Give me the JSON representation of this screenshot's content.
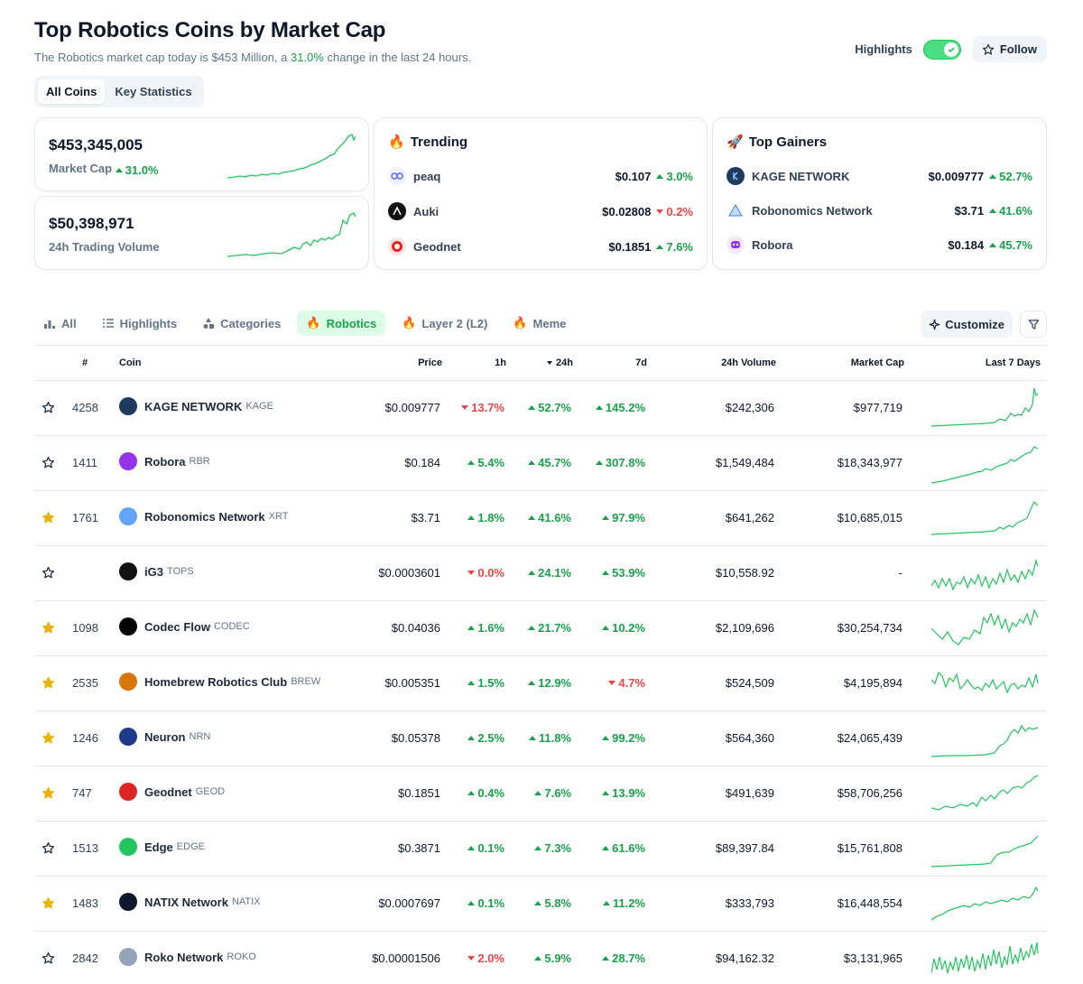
{
  "header": {
    "title": "Top Robotics Coins by Market Cap",
    "subtitle_pre": "The Robotics market cap today is $453 Million, a",
    "subtitle_pct": "31.0%",
    "subtitle_post": "change in the last 24 hours.",
    "highlights_label": "Highlights",
    "highlights_on": true,
    "follow_label": "Follow"
  },
  "view_tabs": [
    "All Coins",
    "Key Statistics"
  ],
  "stats": {
    "market_cap_value": "$453,345,005",
    "market_cap_label": "Market Cap",
    "market_cap_change": "31.0%",
    "volume_value": "$50,398,971",
    "volume_label": "24h Trading Volume"
  },
  "trending": {
    "title": "Trending",
    "items": [
      {
        "name": "peaq",
        "price": "$0.107",
        "change": "3.0%",
        "dir": "up"
      },
      {
        "name": "Auki",
        "price": "$0.02808",
        "change": "0.2%",
        "dir": "down"
      },
      {
        "name": "Geodnet",
        "price": "$0.1851",
        "change": "7.6%",
        "dir": "up"
      }
    ]
  },
  "gainers": {
    "title": "Top Gainers",
    "items": [
      {
        "name": "KAGE NETWORK",
        "price": "$0.009777",
        "change": "52.7%",
        "dir": "up"
      },
      {
        "name": "Robonomics Network",
        "price": "$3.71",
        "change": "41.6%",
        "dir": "up"
      },
      {
        "name": "Robora",
        "price": "$0.184",
        "change": "45.7%",
        "dir": "up"
      }
    ]
  },
  "category_tabs": {
    "all": "All",
    "highlights": "Highlights",
    "categories": "Categories",
    "robotics": "Robotics",
    "layer2": "Layer 2 (L2)",
    "meme": "Meme",
    "customize": "Customize"
  },
  "table": {
    "headers": {
      "rank": "#",
      "coin": "Coin",
      "price": "Price",
      "h1": "1h",
      "h24": "24h",
      "d7": "7d",
      "volume": "24h Volume",
      "mcap": "Market Cap",
      "last7": "Last 7 Days"
    },
    "rows": [
      {
        "starred": false,
        "rank": "4258",
        "name": "KAGE NETWORK",
        "symbol": "KAGE",
        "price": "$0.009777",
        "h1": "13.7%",
        "h1_dir": "down",
        "h24": "52.7%",
        "h24_dir": "up",
        "d7": "145.2%",
        "d7_dir": "up",
        "volume": "$242,306",
        "mcap": "$977,719",
        "icon_color": "#1e3a5f"
      },
      {
        "starred": false,
        "rank": "1411",
        "name": "Robora",
        "symbol": "RBR",
        "price": "$0.184",
        "h1": "5.4%",
        "h1_dir": "up",
        "h24": "45.7%",
        "h24_dir": "up",
        "d7": "307.8%",
        "d7_dir": "up",
        "volume": "$1,549,484",
        "mcap": "$18,343,977",
        "icon_color": "#9333ea"
      },
      {
        "starred": true,
        "rank": "1761",
        "name": "Robonomics Network",
        "symbol": "XRT",
        "price": "$3.71",
        "h1": "1.8%",
        "h1_dir": "up",
        "h24": "41.6%",
        "h24_dir": "up",
        "d7": "97.9%",
        "d7_dir": "up",
        "volume": "$641,262",
        "mcap": "$10,685,015",
        "icon_color": "#60a5fa"
      },
      {
        "starred": false,
        "rank": "",
        "name": "iG3",
        "symbol": "TOPS",
        "price": "$0.0003601",
        "h1": "0.0%",
        "h1_dir": "down",
        "h24": "24.1%",
        "h24_dir": "up",
        "d7": "53.9%",
        "d7_dir": "up",
        "volume": "$10,558.92",
        "mcap": "-",
        "icon_color": "#111111"
      },
      {
        "starred": true,
        "rank": "1098",
        "name": "Codec Flow",
        "symbol": "CODEC",
        "price": "$0.04036",
        "h1": "1.6%",
        "h1_dir": "up",
        "h24": "21.7%",
        "h24_dir": "up",
        "d7": "10.2%",
        "d7_dir": "up",
        "volume": "$2,109,696",
        "mcap": "$30,254,734",
        "icon_color": "#000000"
      },
      {
        "starred": true,
        "rank": "2535",
        "name": "Homebrew Robotics Club",
        "symbol": "BREW",
        "price": "$0.005351",
        "h1": "1.5%",
        "h1_dir": "up",
        "h24": "12.9%",
        "h24_dir": "up",
        "d7": "4.7%",
        "d7_dir": "down",
        "volume": "$524,509",
        "mcap": "$4,195,894",
        "icon_color": "#d97706"
      },
      {
        "starred": true,
        "rank": "1246",
        "name": "Neuron",
        "symbol": "NRN",
        "price": "$0.05378",
        "h1": "2.5%",
        "h1_dir": "up",
        "h24": "11.8%",
        "h24_dir": "up",
        "d7": "99.2%",
        "d7_dir": "up",
        "volume": "$564,360",
        "mcap": "$24,065,439",
        "icon_color": "#1e3a8a"
      },
      {
        "starred": true,
        "rank": "747",
        "name": "Geodnet",
        "symbol": "GEOD",
        "price": "$0.1851",
        "h1": "0.4%",
        "h1_dir": "up",
        "h24": "7.6%",
        "h24_dir": "up",
        "d7": "13.9%",
        "d7_dir": "up",
        "volume": "$491,639",
        "mcap": "$58,706,256",
        "icon_color": "#dc2626"
      },
      {
        "starred": false,
        "rank": "1513",
        "name": "Edge",
        "symbol": "EDGE",
        "price": "$0.3871",
        "h1": "0.1%",
        "h1_dir": "up",
        "h24": "7.3%",
        "h24_dir": "up",
        "d7": "61.6%",
        "d7_dir": "up",
        "volume": "$89,397.84",
        "mcap": "$15,761,808",
        "icon_color": "#22c55e"
      },
      {
        "starred": true,
        "rank": "1483",
        "name": "NATIX Network",
        "symbol": "NATIX",
        "price": "$0.0007697",
        "h1": "0.1%",
        "h1_dir": "up",
        "h24": "5.8%",
        "h24_dir": "up",
        "d7": "11.2%",
        "d7_dir": "up",
        "volume": "$333,793",
        "mcap": "$16,448,554",
        "icon_color": "#0f172a"
      },
      {
        "starred": false,
        "rank": "2842",
        "name": "Roko Network",
        "symbol": "ROKO",
        "price": "$0.00001506",
        "h1": "2.0%",
        "h1_dir": "down",
        "h24": "5.9%",
        "h24_dir": "up",
        "d7": "28.7%",
        "d7_dir": "up",
        "volume": "$94,162.32",
        "mcap": "$3,131,965",
        "icon_color": "#94a3b8"
      }
    ]
  },
  "colors": {
    "up": "#16a34a",
    "down": "#ef4444",
    "spark": "#22c55e",
    "star_filled": "#eab308"
  }
}
